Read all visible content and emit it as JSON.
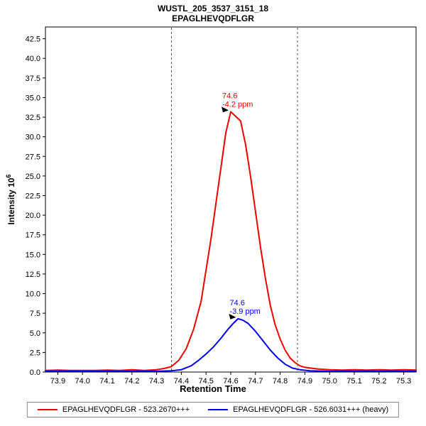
{
  "window": {
    "title_line1": "WUSTL_205_3537_3151_18",
    "title_line2": "EPAGLHEVQDFLGR"
  },
  "axes": {
    "x_label": "Retention Time",
    "y_label_base": "Intensity 10",
    "y_label_exp": "6"
  },
  "legend": {
    "items": [
      {
        "label": "EPAGLHEVQDFLGR - 523.2670+++",
        "color": "#ee0000"
      },
      {
        "label": "EPAGLHEVQDFLGR - 526.6031+++ (heavy)",
        "color": "#0000ee"
      }
    ]
  },
  "chart_data": {
    "type": "line",
    "title": "WUSTL_205_3537_3151_18",
    "subtitle": "EPAGLHEVQDFLGR",
    "xlabel": "Retention Time",
    "ylabel": "Intensity 10^6",
    "xlim": [
      73.85,
      75.35
    ],
    "ylim": [
      0,
      44
    ],
    "grid": false,
    "legend_position": "bottom",
    "x_ticks": [
      73.9,
      74.0,
      74.1,
      74.2,
      74.3,
      74.4,
      74.5,
      74.6,
      74.7,
      74.8,
      74.9,
      75.0,
      75.1,
      75.2,
      75.3
    ],
    "y_ticks": [
      0,
      2.5,
      5,
      7.5,
      10,
      12.5,
      15,
      17.5,
      20,
      22.5,
      25,
      27.5,
      30,
      32.5,
      35,
      37.5,
      40,
      42.5
    ],
    "boundary_color": "#555555",
    "peak_boundaries": [
      74.36,
      74.87
    ],
    "series": [
      {
        "name": "EPAGLHEVQDFLGR - 523.2670+++",
        "color": "#ee0000",
        "x": [
          73.85,
          73.9,
          73.95,
          74.0,
          74.05,
          74.1,
          74.15,
          74.2,
          74.25,
          74.3,
          74.33,
          74.36,
          74.39,
          74.42,
          74.45,
          74.48,
          74.5,
          74.52,
          74.54,
          74.56,
          74.58,
          74.6,
          74.62,
          74.64,
          74.66,
          74.68,
          74.7,
          74.72,
          74.74,
          74.76,
          74.78,
          74.8,
          74.82,
          74.84,
          74.86,
          74.88,
          74.9,
          74.95,
          75.0,
          75.05,
          75.1,
          75.15,
          75.2,
          75.25,
          75.3,
          75.35
        ],
        "y": [
          0.2,
          0.25,
          0.2,
          0.2,
          0.2,
          0.25,
          0.2,
          0.3,
          0.2,
          0.3,
          0.45,
          0.7,
          1.5,
          3.0,
          5.5,
          9.0,
          13.0,
          17.0,
          21.5,
          26.0,
          30.5,
          33.2,
          32.6,
          32.0,
          29.0,
          25.0,
          20.5,
          16.0,
          12.0,
          8.5,
          6.0,
          4.2,
          2.8,
          1.8,
          1.2,
          0.8,
          0.6,
          0.4,
          0.3,
          0.25,
          0.3,
          0.25,
          0.3,
          0.25,
          0.3,
          0.25
        ]
      },
      {
        "name": "EPAGLHEVQDFLGR - 526.6031+++ (heavy)",
        "color": "#0000ee",
        "x": [
          73.85,
          74.0,
          74.1,
          74.2,
          74.3,
          74.36,
          74.4,
          74.44,
          74.47,
          74.5,
          74.53,
          74.56,
          74.59,
          74.61,
          74.63,
          74.65,
          74.67,
          74.7,
          74.73,
          74.76,
          74.79,
          74.82,
          74.85,
          74.88,
          74.92,
          75.0,
          75.1,
          75.2,
          75.3,
          75.35
        ],
        "y": [
          0.1,
          0.1,
          0.1,
          0.1,
          0.1,
          0.15,
          0.3,
          0.8,
          1.5,
          2.3,
          3.2,
          4.3,
          5.5,
          6.2,
          6.8,
          6.6,
          6.2,
          5.2,
          4.0,
          2.8,
          1.8,
          1.0,
          0.5,
          0.3,
          0.15,
          0.1,
          0.1,
          0.1,
          0.1,
          0.1
        ]
      }
    ],
    "annotations": [
      {
        "series": "light",
        "x": 74.6,
        "y": 33.2,
        "label_line1": "74.6",
        "label_line2": "-4.2 ppm",
        "color": "#ee0000"
      },
      {
        "series": "heavy",
        "x": 74.63,
        "y": 6.8,
        "label_line1": "74.6",
        "label_line2": "-3.9 ppm",
        "color": "#0000ee"
      }
    ]
  }
}
